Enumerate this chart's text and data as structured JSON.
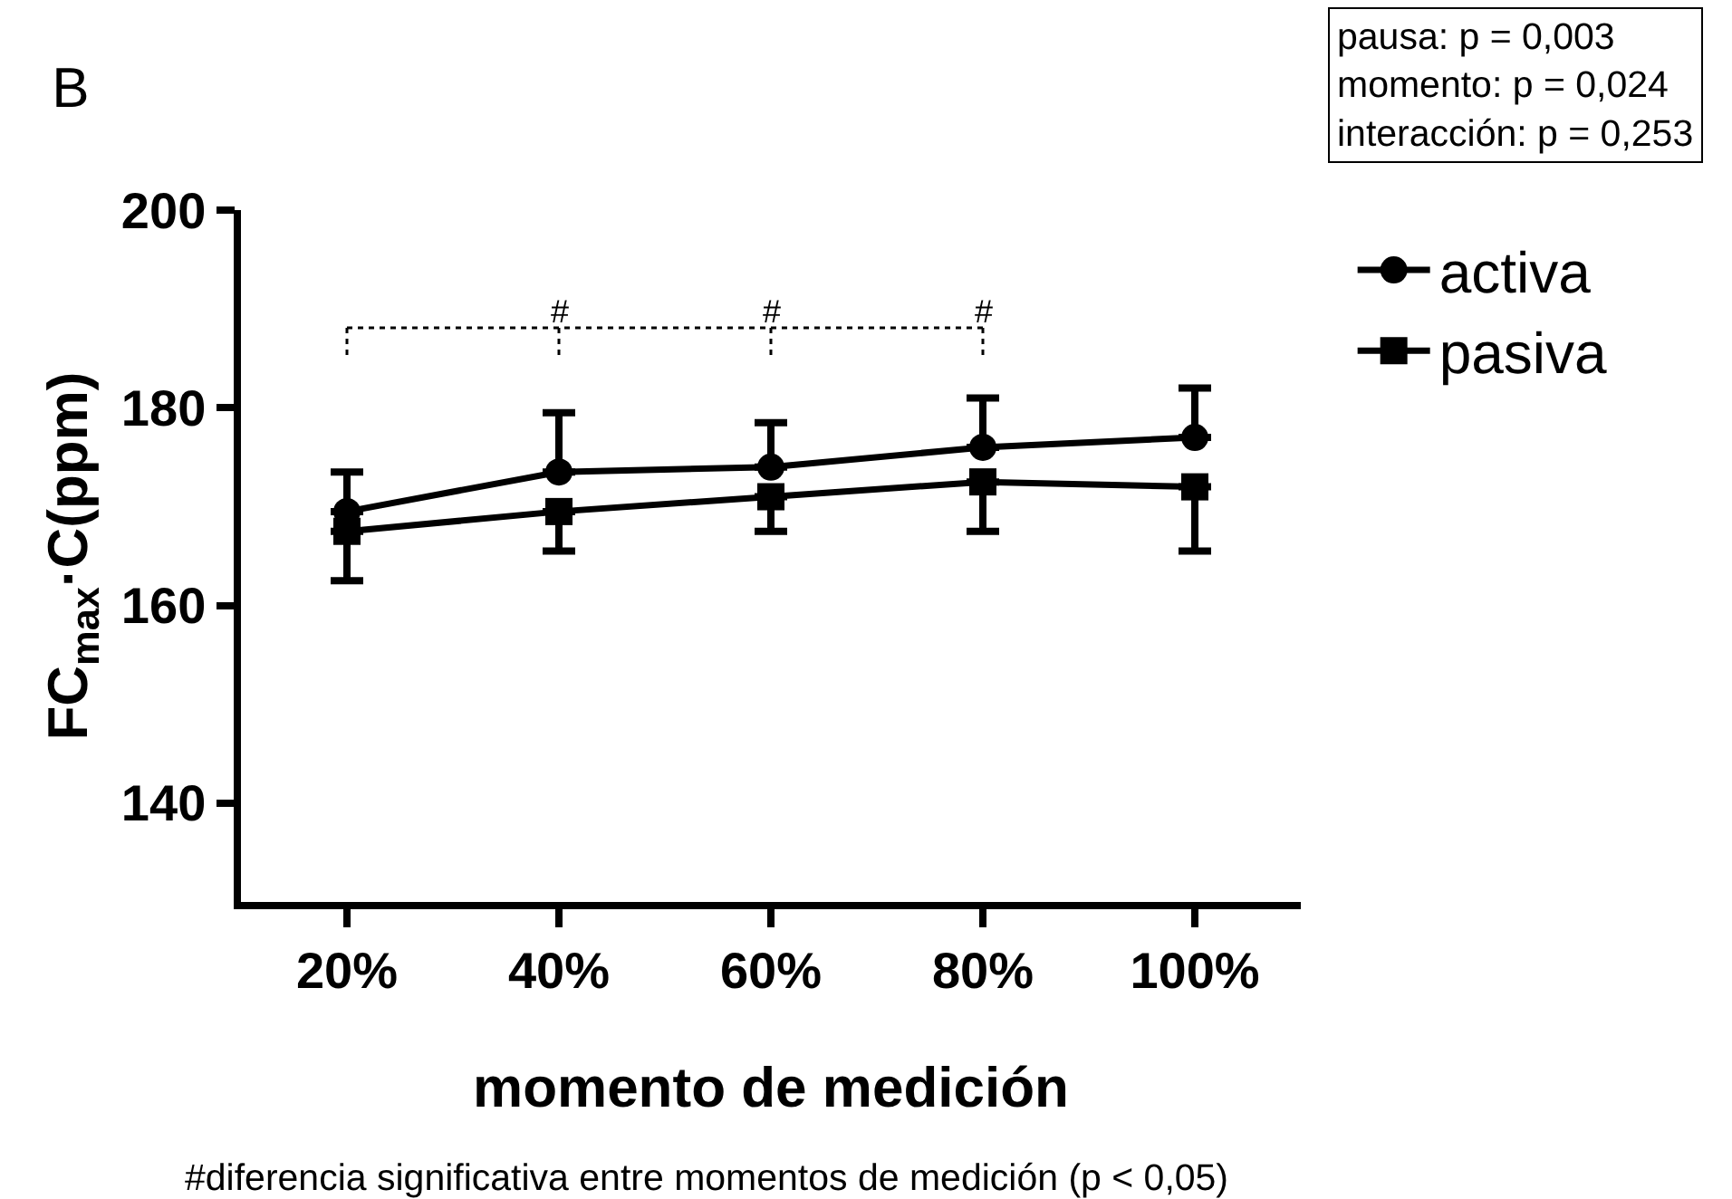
{
  "chart_data": {
    "type": "line",
    "title": "B",
    "xlabel": "momento de medición",
    "ylabel": "FC$_{max}$·C(ppm)",
    "categories": [
      "20%",
      "40%",
      "60%",
      "80%",
      "100%"
    ],
    "series": [
      {
        "name": "activa",
        "color": "#000000",
        "marker": "circle",
        "values": [
          169.5,
          173.5,
          174,
          176,
          177
        ],
        "errors": [
          [
            169.5,
            173.5
          ],
          [
            173.5,
            179.5
          ],
          [
            174,
            178.5
          ],
          [
            176,
            181
          ],
          [
            177,
            182
          ]
        ]
      },
      {
        "name": "pasiva",
        "color": "#000000",
        "marker": "square",
        "values": [
          167.5,
          169.5,
          171,
          172.5,
          172
        ],
        "errors": [
          [
            162.5,
            167.5
          ],
          [
            165.5,
            169.5
          ],
          [
            167.5,
            171
          ],
          [
            167.5,
            172.5
          ],
          [
            165.5,
            172
          ]
        ]
      }
    ],
    "ylim": [
      130,
      200
    ],
    "yticks": [
      140,
      160,
      180,
      200
    ],
    "legend": "top right",
    "line_style": "solid",
    "annotations": [
      "pausa: p = 0,003",
      "momento: p = 0,024",
      "interacción: p = 0,253",
      "#",
      "#",
      "#",
      "#diferencia significativa entre momentos de medición (p < 0,05)"
    ]
  }
}
